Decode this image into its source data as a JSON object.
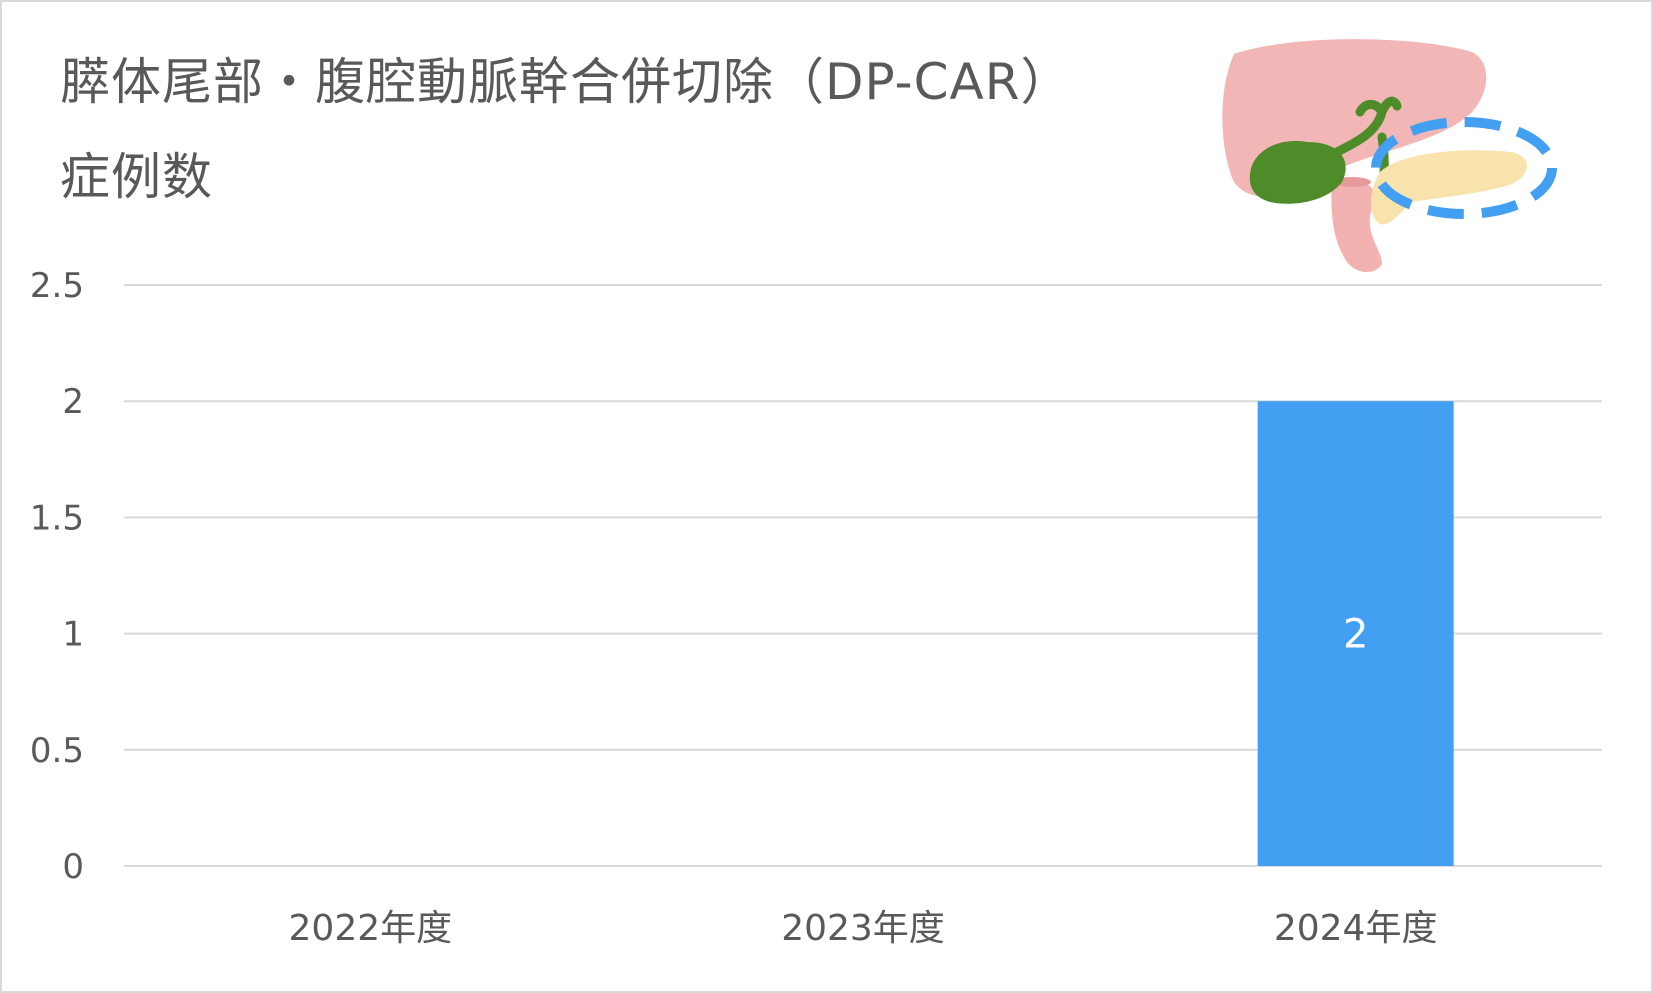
{
  "chart_data": {
    "type": "bar",
    "title_lines": [
      "膵体尾部・腹腔動脈幹合併切除（DP-CAR）",
      "症例数"
    ],
    "categories": [
      "2022年度",
      "2023年度",
      "2024年度"
    ],
    "series": [
      {
        "values": [
          0,
          0,
          2
        ],
        "data_labels": [
          "",
          "",
          "2"
        ]
      }
    ],
    "y_ticks": [
      "0",
      "0.5",
      "1",
      "1.5",
      "2",
      "2.5"
    ],
    "ylim": [
      0,
      2.5
    ],
    "xlabel": "",
    "ylabel": "",
    "grid": true,
    "legend": "none"
  },
  "colors": {
    "bar": "#439ff2",
    "grid": "#d9d9d9",
    "text": "#595959",
    "data_label": "#ffffff"
  },
  "illustration": {
    "icon": "pancreas-illustration-icon"
  }
}
